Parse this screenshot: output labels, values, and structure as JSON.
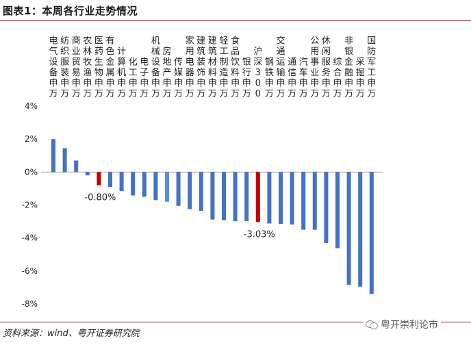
{
  "figure_title": "图表1：本周各行业走势情况",
  "source_note": "资料来源：wind、粤开证券研究院",
  "watermark": "粤开崇利论市",
  "colors": {
    "bar": "#4472c4",
    "bar_highlight": "#5b8ed8",
    "bar_red": "#c00000",
    "axis": "#999999",
    "text": "#222222",
    "rule": "#7f1d1d"
  },
  "chart_data": {
    "type": "bar",
    "title": "本周各行业走势情况",
    "xlabel": "",
    "ylabel": "",
    "ylim": [
      -8,
      4
    ],
    "yticks": [
      -8,
      -6,
      -4,
      -2,
      0,
      2,
      4
    ],
    "ytick_labels": [
      "-8%",
      "-6%",
      "-4%",
      "-2%",
      "0%",
      "2%",
      "4%"
    ],
    "grid": false,
    "categories": [
      "电气设备(申万)",
      "纺织服装(申万)",
      "商业贸易(申万)",
      "农林牧渔(申万)",
      "医药生物(申万)",
      "有色金属(申万)",
      "计算机(申万)",
      "化工(申万)",
      "电子(申万)",
      "机械设备(申万)",
      "房地产(申万)",
      "传媒(申万)",
      "家用电器(申万)",
      "建筑装饰(申万)",
      "建筑材料(申万)",
      "轻工制造(申万)",
      "食品饮料(申万)",
      "银行(申万)",
      "沪深300",
      "钢铁(申万)",
      "交通运输(申万)",
      "通信(申万)",
      "汽车(申万)",
      "公用事业(申万)",
      "休闲服务(申万)",
      "综合(申万)",
      "非银金融(申万)",
      "采掘(申万)",
      "国防军工(申万)"
    ],
    "label_columns": [
      "电气设备申万",
      "纺织服装申万",
      "商业贸易申万",
      "农林牧渔申万",
      "医药生物申万",
      "有色金属申万",
      "计算机申万",
      "化工申万",
      "电子申万",
      "机械设备申万",
      "房地产申万",
      "传媒申万",
      "家用电器申万",
      "建筑装饰申万",
      "建筑材料申万",
      "轻工制造申万",
      "食品饮料申万",
      "银行申万",
      "沪深300",
      "钢铁申万",
      "交通运输申万",
      "通信申万",
      "汽车申万",
      "公用事业申万",
      "休闲服务申万",
      "综合申万",
      "非银金融申万",
      "采掘申万",
      "国防军工申万"
    ],
    "values": [
      2.0,
      1.45,
      0.7,
      -0.2,
      -0.8,
      -0.9,
      -1.15,
      -1.42,
      -1.5,
      -1.7,
      -1.8,
      -2.05,
      -2.25,
      -2.35,
      -2.88,
      -2.92,
      -2.98,
      -2.98,
      -3.03,
      -3.12,
      -3.15,
      -3.18,
      -3.5,
      -3.5,
      -4.3,
      -4.62,
      -6.85,
      -6.95,
      -7.4
    ],
    "highlight": {
      "red": [
        4,
        18
      ],
      "light": [
        10
      ]
    },
    "annotations": [
      {
        "index": 4,
        "text": "-0.80%"
      },
      {
        "index": 18,
        "text": "-3.03%"
      }
    ]
  }
}
